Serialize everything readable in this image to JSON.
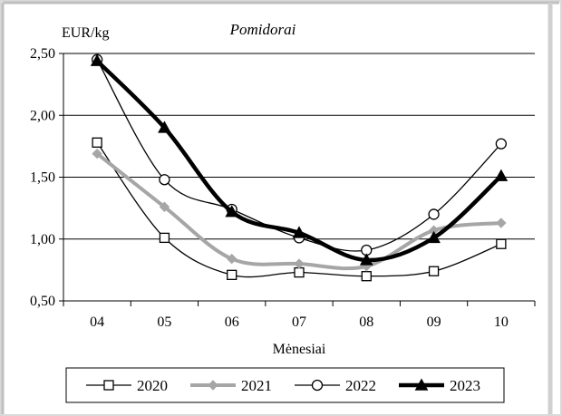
{
  "chart_data": {
    "type": "line",
    "title": "Pomidorai",
    "ylabel": "EUR/kg",
    "xlabel": "Mėnesiai",
    "categories": [
      "04",
      "05",
      "06",
      "07",
      "08",
      "09",
      "10"
    ],
    "y_ticks": [
      "0,50",
      "1,00",
      "1,50",
      "2,00",
      "2,50"
    ],
    "ylim": [
      0.5,
      2.5
    ],
    "grid": "horizontal",
    "legend_position": "bottom",
    "series": [
      {
        "name": "2020",
        "values": [
          1.78,
          1.01,
          0.71,
          0.73,
          0.7,
          0.74,
          0.96
        ],
        "color": "#000000",
        "marker": "square-open",
        "stroke": "thin"
      },
      {
        "name": "2021",
        "values": [
          1.69,
          1.26,
          0.84,
          0.8,
          0.78,
          1.07,
          1.13
        ],
        "color": "#a6a6a6",
        "marker": "diamond-filled",
        "stroke": "medium"
      },
      {
        "name": "2022",
        "values": [
          2.45,
          1.48,
          1.24,
          1.01,
          0.91,
          1.2,
          1.77
        ],
        "color": "#000000",
        "marker": "circle-open",
        "stroke": "thin"
      },
      {
        "name": "2023",
        "values": [
          2.44,
          1.9,
          1.22,
          1.05,
          0.83,
          1.01,
          1.51
        ],
        "color": "#000000",
        "marker": "triangle-filled",
        "stroke": "thick"
      }
    ]
  }
}
